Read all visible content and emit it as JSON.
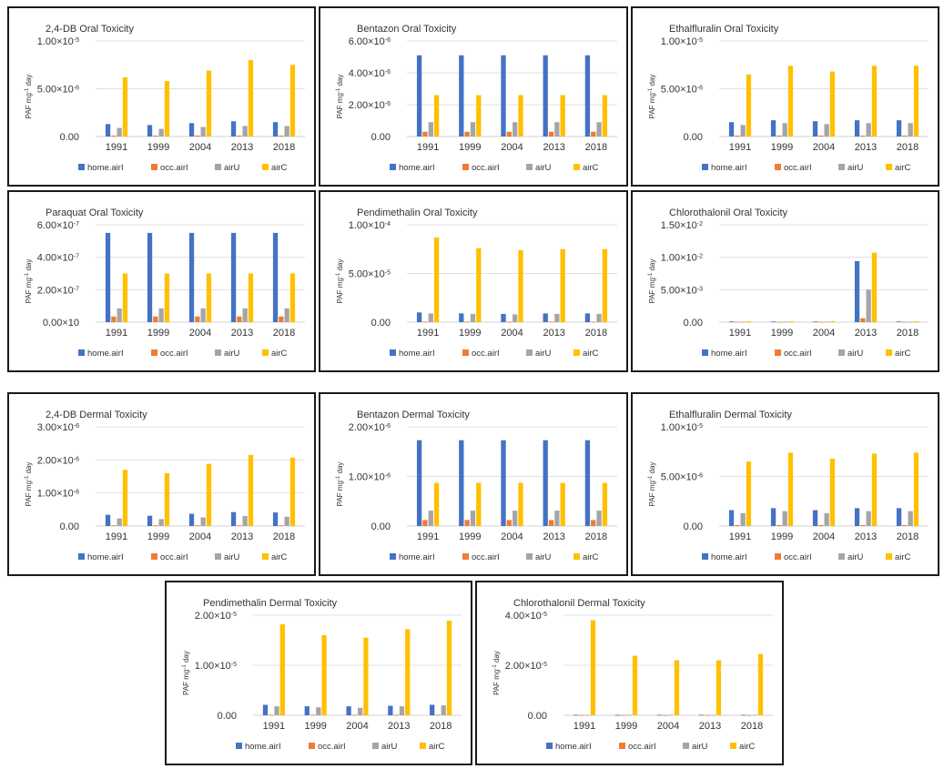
{
  "colors": {
    "home.airI": "#4472c4",
    "occ.airI": "#ed7d31",
    "airU": "#a5a5a5",
    "airC": "#ffc000"
  },
  "legend": [
    "home.airI",
    "occ.airI",
    "airU",
    "airC"
  ],
  "ylabel_main": "PAF mg",
  "ylabel_exp": "-1",
  "ylabel_tail": " day",
  "chart_data": [
    {
      "type": "bar",
      "title": "2,4-DB Oral Toxicity",
      "categories": [
        "1991",
        "1999",
        "2004",
        "2013",
        "2018"
      ],
      "yticks": [
        {
          "m": "0.00",
          "e": ""
        },
        {
          "m": "5.00×10",
          "e": "-6"
        },
        {
          "m": "1.00×10",
          "e": "-5"
        }
      ],
      "ylim": [
        0,
        1e-05
      ],
      "series": [
        {
          "name": "home.airI",
          "values": [
            1.3e-06,
            1.2e-06,
            1.4e-06,
            1.6e-06,
            1.5e-06
          ]
        },
        {
          "name": "occ.airI",
          "values": [
            1e-07,
            1e-07,
            1e-07,
            1e-07,
            1e-07
          ]
        },
        {
          "name": "airU",
          "values": [
            9e-07,
            8e-07,
            1e-06,
            1.1e-06,
            1.1e-06
          ]
        },
        {
          "name": "airC",
          "values": [
            6.2e-06,
            5.8e-06,
            6.9e-06,
            8e-06,
            7.5e-06
          ]
        }
      ]
    },
    {
      "type": "bar",
      "title": "Bentazon Oral Toxicity",
      "categories": [
        "1991",
        "1999",
        "2004",
        "2013",
        "2018"
      ],
      "yticks": [
        {
          "m": "0.00",
          "e": ""
        },
        {
          "m": "2.00×10",
          "e": "-6"
        },
        {
          "m": "4.00×10",
          "e": "-6"
        },
        {
          "m": "6.00×10",
          "e": "-6"
        }
      ],
      "ylim": [
        0,
        6e-06
      ],
      "series": [
        {
          "name": "home.airI",
          "values": [
            5.1e-06,
            5.1e-06,
            5.1e-06,
            5.1e-06,
            5.1e-06
          ]
        },
        {
          "name": "occ.airI",
          "values": [
            3e-07,
            3e-07,
            3e-07,
            3e-07,
            3e-07
          ]
        },
        {
          "name": "airU",
          "values": [
            9e-07,
            9e-07,
            9e-07,
            9e-07,
            9e-07
          ]
        },
        {
          "name": "airC",
          "values": [
            2.6e-06,
            2.6e-06,
            2.6e-06,
            2.6e-06,
            2.6e-06
          ]
        }
      ]
    },
    {
      "type": "bar",
      "title": "Ethalfluralin Oral Toxicity",
      "categories": [
        "1991",
        "1999",
        "2004",
        "2013",
        "2018"
      ],
      "yticks": [
        {
          "m": "0.00",
          "e": ""
        },
        {
          "m": "5.00×10",
          "e": "-6"
        },
        {
          "m": "1.00×10",
          "e": "-5"
        }
      ],
      "ylim": [
        0,
        1e-05
      ],
      "series": [
        {
          "name": "home.airI",
          "values": [
            1.5e-06,
            1.7e-06,
            1.6e-06,
            1.7e-06,
            1.7e-06
          ]
        },
        {
          "name": "occ.airI",
          "values": [
            1e-07,
            1e-07,
            1e-07,
            1e-07,
            1e-07
          ]
        },
        {
          "name": "airU",
          "values": [
            1.2e-06,
            1.4e-06,
            1.3e-06,
            1.4e-06,
            1.4e-06
          ]
        },
        {
          "name": "airC",
          "values": [
            6.5e-06,
            7.4e-06,
            6.8e-06,
            7.4e-06,
            7.4e-06
          ]
        }
      ]
    },
    {
      "type": "bar",
      "title": "Paraquat Oral Toxicity",
      "categories": [
        "1991",
        "1999",
        "2004",
        "2013",
        "2018"
      ],
      "yticks": [
        {
          "m": "0.00×10",
          "e": ""
        },
        {
          "m": "2.00×10",
          "e": "-7"
        },
        {
          "m": "4.00×10",
          "e": "-7"
        },
        {
          "m": "6.00×10",
          "e": "-7"
        }
      ],
      "ylim": [
        0,
        6e-07
      ],
      "series": [
        {
          "name": "home.airI",
          "values": [
            5.5e-07,
            5.5e-07,
            5.5e-07,
            5.5e-07,
            5.5e-07
          ]
        },
        {
          "name": "occ.airI",
          "values": [
            3.5e-08,
            3.5e-08,
            3.5e-08,
            3.5e-08,
            3.5e-08
          ]
        },
        {
          "name": "airU",
          "values": [
            8.5e-08,
            8.5e-08,
            8.5e-08,
            8.5e-08,
            8.5e-08
          ]
        },
        {
          "name": "airC",
          "values": [
            3e-07,
            3e-07,
            3e-07,
            3e-07,
            3e-07
          ]
        }
      ]
    },
    {
      "type": "bar",
      "title": "Pendimethalin Oral Toxicity",
      "categories": [
        "1991",
        "1999",
        "2004",
        "2013",
        "2018"
      ],
      "yticks": [
        {
          "m": "0.00",
          "e": ""
        },
        {
          "m": "5.00×10",
          "e": "-5"
        },
        {
          "m": "1.00×10",
          "e": "-4"
        }
      ],
      "ylim": [
        0,
        0.0001
      ],
      "series": [
        {
          "name": "home.airI",
          "values": [
            1e-05,
            9e-06,
            8.5e-06,
            9e-06,
            9e-06
          ]
        },
        {
          "name": "occ.airI",
          "values": [
            5e-07,
            5e-07,
            5e-07,
            5e-07,
            5e-07
          ]
        },
        {
          "name": "airU",
          "values": [
            9e-06,
            8.5e-06,
            8e-06,
            8.5e-06,
            8.5e-06
          ]
        },
        {
          "name": "airC",
          "values": [
            8.7e-05,
            7.6e-05,
            7.4e-05,
            7.5e-05,
            7.5e-05
          ]
        }
      ]
    },
    {
      "type": "bar",
      "title": "Chlorothalonil Oral Toxicity",
      "categories": [
        "1991",
        "1999",
        "2004",
        "2013",
        "2018"
      ],
      "yticks": [
        {
          "m": "0.00",
          "e": ""
        },
        {
          "m": "5.00×10",
          "e": "-3"
        },
        {
          "m": "1.00×10",
          "e": "-2"
        },
        {
          "m": "1.50×10",
          "e": "-2"
        }
      ],
      "ylim": [
        0,
        0.015
      ],
      "series": [
        {
          "name": "home.airI",
          "values": [
            0.0001,
            0.0001,
            0.0001,
            0.0094,
            0.0001
          ]
        },
        {
          "name": "occ.airI",
          "values": [
            5e-05,
            5e-05,
            5e-05,
            0.0006,
            5e-05
          ]
        },
        {
          "name": "airU",
          "values": [
            8e-05,
            8e-05,
            8e-05,
            0.005,
            8e-05
          ]
        },
        {
          "name": "airC",
          "values": [
            0.00015,
            0.00015,
            0.00015,
            0.0107,
            0.00015
          ]
        }
      ]
    },
    {
      "type": "bar",
      "title": "2,4-DB Dermal Toxicity",
      "categories": [
        "1991",
        "1999",
        "2004",
        "2013",
        "2018"
      ],
      "yticks": [
        {
          "m": "0.00",
          "e": ""
        },
        {
          "m": "1.00×10",
          "e": "-6"
        },
        {
          "m": "2.00×10",
          "e": "-6"
        },
        {
          "m": "3.00×10",
          "e": "-6"
        }
      ],
      "ylim": [
        0,
        3e-06
      ],
      "series": [
        {
          "name": "home.airI",
          "values": [
            3.4e-07,
            3.1e-07,
            3.7e-07,
            4.2e-07,
            4.1e-07
          ]
        },
        {
          "name": "occ.airI",
          "values": [
            2e-08,
            2e-08,
            2e-08,
            2e-08,
            2e-08
          ]
        },
        {
          "name": "airU",
          "values": [
            2.3e-07,
            2.1e-07,
            2.6e-07,
            3e-07,
            2.8e-07
          ]
        },
        {
          "name": "airC",
          "values": [
            1.7e-06,
            1.6e-06,
            1.88e-06,
            2.15e-06,
            2.07e-06
          ]
        }
      ]
    },
    {
      "type": "bar",
      "title": "Bentazon Dermal Toxicity",
      "categories": [
        "1991",
        "1999",
        "2004",
        "2013",
        "2018"
      ],
      "yticks": [
        {
          "m": "0.00",
          "e": ""
        },
        {
          "m": "1.00×10",
          "e": "-6"
        },
        {
          "m": "2.00×10",
          "e": "-6"
        }
      ],
      "ylim": [
        0,
        2e-06
      ],
      "series": [
        {
          "name": "home.airI",
          "values": [
            1.73e-06,
            1.73e-06,
            1.73e-06,
            1.73e-06,
            1.73e-06
          ]
        },
        {
          "name": "occ.airI",
          "values": [
            1.2e-07,
            1.2e-07,
            1.2e-07,
            1.2e-07,
            1.2e-07
          ]
        },
        {
          "name": "airU",
          "values": [
            3.1e-07,
            3.1e-07,
            3.1e-07,
            3.1e-07,
            3.1e-07
          ]
        },
        {
          "name": "airC",
          "values": [
            8.7e-07,
            8.7e-07,
            8.7e-07,
            8.7e-07,
            8.7e-07
          ]
        }
      ]
    },
    {
      "type": "bar",
      "title": "Ethalfluralin Dermal Toxicity",
      "categories": [
        "1991",
        "1999",
        "2004",
        "2013",
        "2018"
      ],
      "yticks": [
        {
          "m": "0.00",
          "e": ""
        },
        {
          "m": "5.00×10",
          "e": "-6"
        },
        {
          "m": "1.00×10",
          "e": "-5"
        }
      ],
      "ylim": [
        0,
        1e-05
      ],
      "series": [
        {
          "name": "home.airI",
          "values": [
            1.6e-06,
            1.8e-06,
            1.6e-06,
            1.8e-06,
            1.8e-06
          ]
        },
        {
          "name": "occ.airI",
          "values": [
            1e-07,
            1e-07,
            1e-07,
            1e-07,
            1e-07
          ]
        },
        {
          "name": "airU",
          "values": [
            1.3e-06,
            1.5e-06,
            1.3e-06,
            1.5e-06,
            1.5e-06
          ]
        },
        {
          "name": "airC",
          "values": [
            6.5e-06,
            7.4e-06,
            6.8e-06,
            7.3e-06,
            7.4e-06
          ]
        }
      ]
    },
    {
      "type": "bar",
      "title": "Pendimethalin Dermal Toxicity",
      "categories": [
        "1991",
        "1999",
        "2004",
        "2013",
        "2018"
      ],
      "yticks": [
        {
          "m": "0.00",
          "e": ""
        },
        {
          "m": "1.00×10",
          "e": "-5"
        },
        {
          "m": "2.00×10",
          "e": "-5"
        }
      ],
      "ylim": [
        0,
        2e-05
      ],
      "series": [
        {
          "name": "home.airI",
          "values": [
            2.1e-06,
            1.8e-06,
            1.8e-06,
            1.9e-06,
            2.1e-06
          ]
        },
        {
          "name": "occ.airI",
          "values": [
            1e-07,
            1e-07,
            1e-07,
            1e-07,
            1e-07
          ]
        },
        {
          "name": "airU",
          "values": [
            1.8e-06,
            1.6e-06,
            1.5e-06,
            1.8e-06,
            2e-06
          ]
        },
        {
          "name": "airC",
          "values": [
            1.82e-05,
            1.6e-05,
            1.55e-05,
            1.72e-05,
            1.89e-05
          ]
        }
      ]
    },
    {
      "type": "bar",
      "title": "Chlorothalonil Dermal Toxicity",
      "categories": [
        "1991",
        "1999",
        "2004",
        "2013",
        "2018"
      ],
      "yticks": [
        {
          "m": "0.00",
          "e": ""
        },
        {
          "m": "2.00×10",
          "e": "-5"
        },
        {
          "m": "4.00×10",
          "e": "-5"
        }
      ],
      "ylim": [
        0,
        4e-05
      ],
      "series": [
        {
          "name": "home.airI",
          "values": [
            2e-07,
            2e-07,
            2e-07,
            2e-07,
            2e-07
          ]
        },
        {
          "name": "occ.airI",
          "values": [
            1e-07,
            1e-07,
            1e-07,
            1e-07,
            1e-07
          ]
        },
        {
          "name": "airU",
          "values": [
            2e-07,
            2e-07,
            2e-07,
            2e-07,
            2e-07
          ]
        },
        {
          "name": "airC",
          "values": [
            3.8e-05,
            2.38e-05,
            2.2e-05,
            2.2e-05,
            2.45e-05
          ]
        }
      ]
    }
  ]
}
